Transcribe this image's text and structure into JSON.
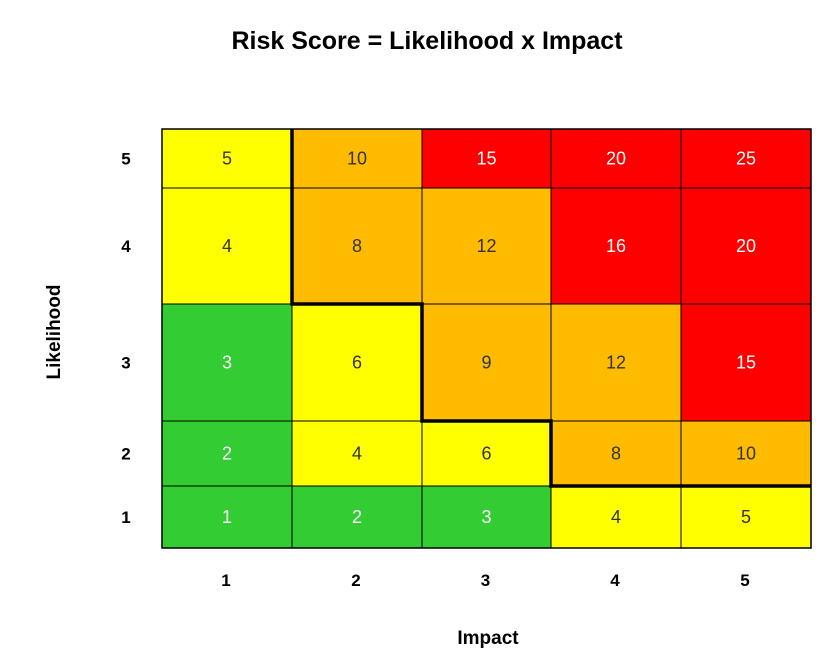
{
  "chart_data": {
    "type": "heatmap",
    "title": "Risk Score = Likelihood x Impact",
    "xlabel": "Impact",
    "ylabel": "Likelihood",
    "x_categories": [
      "1",
      "2",
      "3",
      "4",
      "5"
    ],
    "y_categories": [
      "1",
      "2",
      "3",
      "4",
      "5"
    ],
    "rows": [
      {
        "likelihood": "5",
        "values": [
          5,
          10,
          15,
          20,
          25
        ],
        "colors": [
          "yellow",
          "orange",
          "red",
          "red",
          "red"
        ]
      },
      {
        "likelihood": "4",
        "values": [
          4,
          8,
          12,
          16,
          20
        ],
        "colors": [
          "yellow",
          "orange",
          "orange",
          "red",
          "red"
        ]
      },
      {
        "likelihood": "3",
        "values": [
          3,
          6,
          9,
          12,
          15
        ],
        "colors": [
          "green",
          "yellow",
          "orange",
          "orange",
          "red"
        ]
      },
      {
        "likelihood": "2",
        "values": [
          2,
          4,
          6,
          8,
          10
        ],
        "colors": [
          "green",
          "yellow",
          "yellow",
          "orange",
          "orange"
        ]
      },
      {
        "likelihood": "1",
        "values": [
          1,
          2,
          3,
          4,
          5
        ],
        "colors": [
          "green",
          "green",
          "green",
          "yellow",
          "yellow"
        ]
      }
    ],
    "palette": {
      "green": "#33cc33",
      "yellow": "#ffff00",
      "orange": "#ffbb00",
      "red": "#ff0000"
    },
    "label_colors": {
      "green": "#ffffff",
      "yellow": "#333333",
      "orange": "#333333",
      "red": "#ffffff"
    },
    "grid": true,
    "legend": "none"
  }
}
